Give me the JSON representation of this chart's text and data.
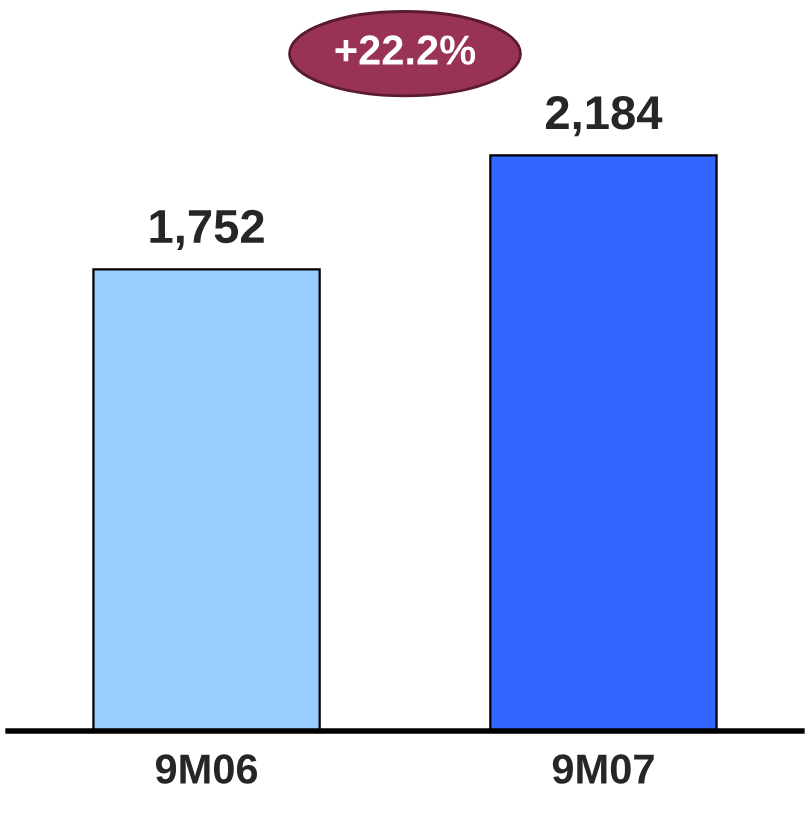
{
  "chart_data": {
    "type": "bar",
    "categories": [
      "9M06",
      "9M07"
    ],
    "values": [
      1752,
      2184
    ],
    "colors": [
      "#99ccff",
      "#3366ff"
    ],
    "value_labels": [
      "1,752",
      "2,184"
    ],
    "annotations": [
      "+22.2%"
    ],
    "grid": false,
    "legend": false
  }
}
